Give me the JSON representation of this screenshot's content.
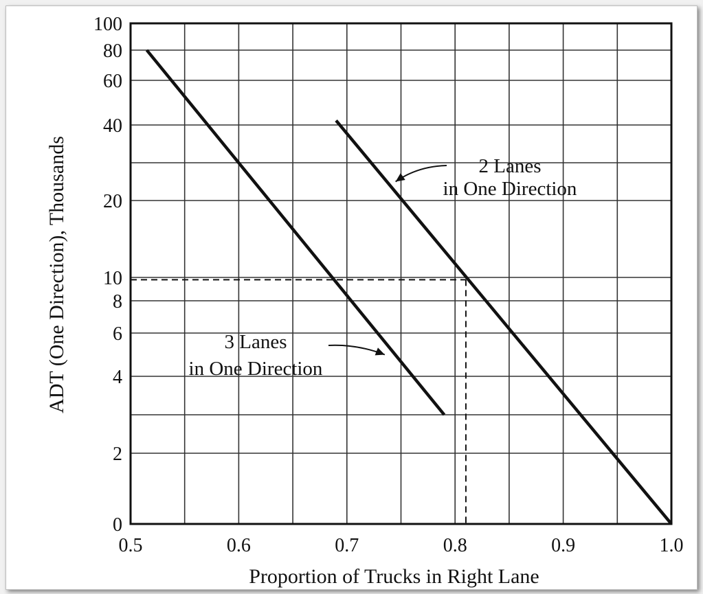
{
  "chart_data": {
    "type": "line",
    "title": "",
    "xlabel": "Proportion of Trucks in Right Lane",
    "ylabel": "ADT (One Direction), Thousands",
    "xlim": [
      0.5,
      1.0
    ],
    "y_scale": "log-like (nonlinear)",
    "grid": true,
    "x_ticks": [
      {
        "value": 0.5,
        "label": "0.5"
      },
      {
        "value": 0.6,
        "label": "0.6"
      },
      {
        "value": 0.7,
        "label": "0.7"
      },
      {
        "value": 0.8,
        "label": "0.8"
      },
      {
        "value": 0.9,
        "label": "0.9"
      },
      {
        "value": 1.0,
        "label": "1.0"
      }
    ],
    "y_ticks": [
      {
        "value": 100,
        "label": "100"
      },
      {
        "value": 80,
        "label": "80"
      },
      {
        "value": 60,
        "label": "60"
      },
      {
        "value": 40,
        "label": "40"
      },
      {
        "value": 20,
        "label": "20"
      },
      {
        "value": 10,
        "label": "10"
      },
      {
        "value": 8,
        "label": "8"
      },
      {
        "value": 6,
        "label": "6"
      },
      {
        "value": 4,
        "label": "4"
      },
      {
        "value": 2,
        "label": "2"
      },
      {
        "value": 0,
        "label": "0"
      }
    ],
    "series": [
      {
        "name": "3 Lanes in One Direction",
        "points": [
          {
            "x": 0.515,
            "y": 80
          },
          {
            "x": 0.79,
            "y": 3
          }
        ]
      },
      {
        "name": "2 Lanes in One Direction",
        "points": [
          {
            "x": 0.69,
            "y": 42
          },
          {
            "x": 1.0,
            "y": 0
          }
        ]
      }
    ],
    "annotations": [
      {
        "series": 1,
        "lines": [
          "2 Lanes",
          "in One Direction"
        ],
        "pointer_to": {
          "x": 0.745,
          "y": 25
        }
      },
      {
        "series": 0,
        "lines": [
          "3 Lanes",
          "in One Direction"
        ],
        "pointer_to": {
          "x": 0.735,
          "y": 5
        }
      }
    ],
    "reference": {
      "x": 0.81,
      "y": 9.8,
      "style": "dashed"
    },
    "colors": {
      "line": "#111111",
      "grid": "#333333",
      "background": "#ffffff"
    }
  }
}
